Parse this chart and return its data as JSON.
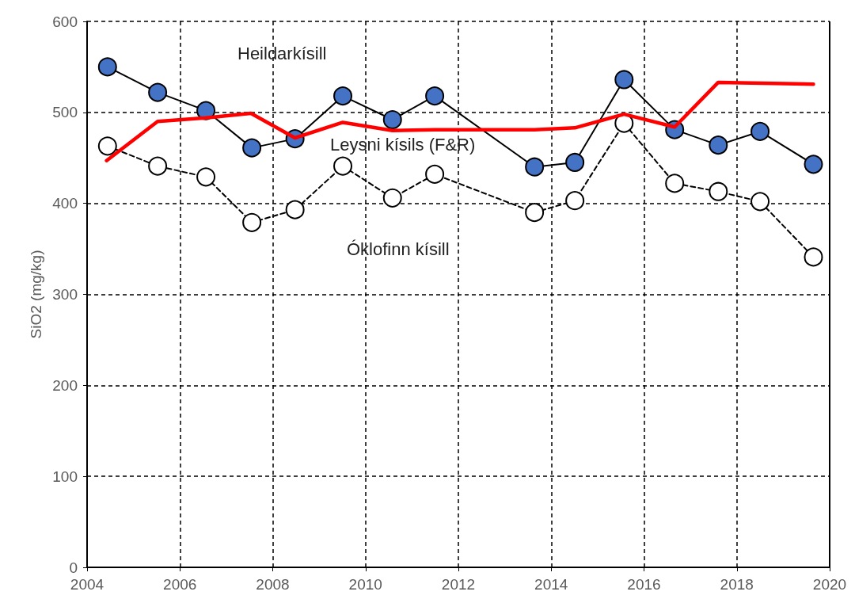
{
  "chart_data": {
    "type": "line",
    "ylabel": "SiO2 (mg/kg)",
    "xlim": [
      2004,
      2020
    ],
    "xticks": [
      2004,
      2006,
      2008,
      2010,
      2012,
      2014,
      2016,
      2018,
      2020
    ],
    "ylim": [
      0,
      600
    ],
    "yticks": [
      0,
      100,
      200,
      300,
      400,
      500,
      600
    ],
    "grid": true,
    "series": [
      {
        "name": "Heildarkísill",
        "color": "#4472c4",
        "marker": "circle",
        "line_style": "solid",
        "x": [
          2004.44,
          2005.52,
          2006.56,
          2007.55,
          2008.48,
          2009.51,
          2010.58,
          2011.49,
          2013.64,
          2014.51,
          2015.57,
          2016.66,
          2017.6,
          2018.5,
          2019.65
        ],
        "values": [
          550,
          522,
          502,
          461,
          471,
          518,
          492,
          518,
          440,
          445,
          536,
          481,
          464,
          479,
          443
        ]
      },
      {
        "name": "Leysni kísils (F&R)",
        "color": "#ff0000",
        "marker": "none",
        "line_style": "solid",
        "x": [
          2004.42,
          2005.52,
          2006.56,
          2007.53,
          2008.48,
          2009.51,
          2010.58,
          2011.49,
          2013.64,
          2014.51,
          2015.57,
          2016.66,
          2017.6,
          2019.65
        ],
        "values": [
          447,
          490,
          494,
          499,
          472,
          489,
          480,
          481,
          481,
          483,
          498,
          484,
          533,
          531
        ]
      },
      {
        "name": "Óklofinn kísill",
        "color": "#000000",
        "marker": "circle",
        "line_style": "dashed",
        "x": [
          2004.44,
          2005.52,
          2006.56,
          2007.55,
          2008.48,
          2009.51,
          2010.58,
          2011.49,
          2013.64,
          2014.51,
          2015.57,
          2016.66,
          2017.6,
          2018.5,
          2019.65
        ],
        "values": [
          463,
          441,
          429,
          379,
          393,
          441,
          406,
          432,
          390,
          403,
          488,
          422,
          413,
          402,
          341
        ]
      }
    ]
  }
}
